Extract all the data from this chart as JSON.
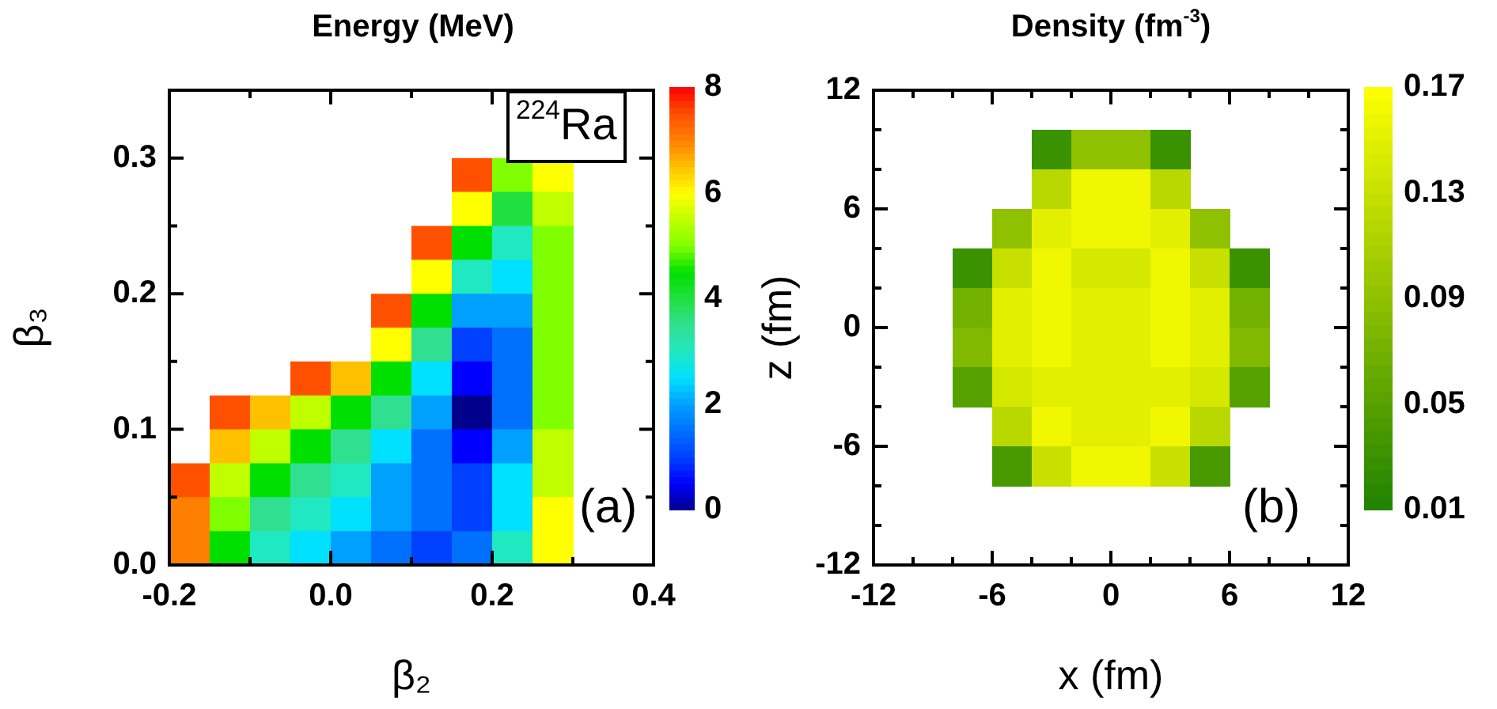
{
  "chart_data": [
    {
      "type": "scatter",
      "title": "Energy (MeV)",
      "xlabel": "β₂",
      "ylabel": "β₃",
      "marker": "square",
      "xlim": [
        -0.2,
        0.4
      ],
      "xticks": [
        -0.2,
        {
          "value": -0.1,
          "label": null
        },
        {
          "value": 0,
          "label": "0.0"
        },
        {
          "value": 0.1,
          "label": null
        },
        0.2,
        {
          "value": 0.3,
          "label": null
        },
        0.4
      ],
      "ylim": [
        0,
        0.35
      ],
      "yticks": [
        {
          "value": 0,
          "label": "0.0"
        },
        {
          "value": 0.05,
          "label": null
        },
        0.1,
        {
          "value": 0.15,
          "label": null
        },
        0.2,
        {
          "value": 0.25,
          "label": null
        },
        0.3
      ],
      "clim": [
        0,
        8
      ],
      "cticks": [
        0,
        2,
        4,
        6,
        8
      ],
      "x": [
        0.175,
        0.225,
        0.275,
        0.175,
        0.225,
        0.275,
        0.125,
        0.175,
        0.225,
        0.275,
        0.125,
        0.175,
        0.225,
        0.275,
        0.075,
        0.125,
        0.175,
        0.225,
        0.275,
        0.075,
        0.125,
        0.175,
        0.225,
        0.275,
        -0.025,
        0.025,
        0.075,
        0.125,
        0.175,
        0.225,
        0.275,
        -0.125,
        -0.075,
        -0.025,
        0.025,
        0.075,
        0.125,
        0.175,
        0.225,
        0.275,
        -0.125,
        -0.075,
        -0.025,
        0.025,
        0.075,
        0.125,
        0.175,
        0.225,
        0.275,
        -0.175,
        -0.125,
        -0.075,
        -0.025,
        0.025,
        0.075,
        0.125,
        0.175,
        0.225,
        0.275,
        -0.175,
        -0.125,
        -0.075,
        -0.025,
        0.025,
        0.075,
        0.125,
        0.175,
        0.225,
        0.275,
        -0.175,
        -0.125,
        -0.075,
        -0.025,
        0.025,
        0.075,
        0.125,
        0.175,
        0.225,
        0.275
      ],
      "values": [
        0.2875,
        0.2875,
        0.2875,
        0.2625,
        0.2625,
        0.2625,
        0.2375,
        0.2375,
        0.2375,
        0.2375,
        0.2125,
        0.2125,
        0.2125,
        0.2125,
        0.1875,
        0.1875,
        0.1875,
        0.1875,
        0.1875,
        0.1625,
        0.1625,
        0.1625,
        0.1625,
        0.1625,
        0.1375,
        0.1375,
        0.1375,
        0.1375,
        0.1375,
        0.1375,
        0.1375,
        0.1125,
        0.1125,
        0.1125,
        0.1125,
        0.1125,
        0.1125,
        0.1125,
        0.1125,
        0.1125,
        0.0875,
        0.0875,
        0.0875,
        0.0875,
        0.0875,
        0.0875,
        0.0875,
        0.0875,
        0.0875,
        0.0625,
        0.0625,
        0.0625,
        0.0625,
        0.0625,
        0.0625,
        0.0625,
        0.0625,
        0.0625,
        0.0625,
        0.0375,
        0.0375,
        0.0375,
        0.0375,
        0.0375,
        0.0375,
        0.0375,
        0.0375,
        0.0375,
        0.0375,
        0.0125,
        0.0125,
        0.0125,
        0.0125,
        0.0125,
        0.0125,
        0.0125,
        0.0125,
        0.0125,
        0.0125
      ],
      "cvalues": [
        7.5,
        5,
        6,
        6,
        4,
        5.5,
        7.5,
        4.5,
        3,
        5,
        6,
        3,
        2.5,
        5,
        7.5,
        4.5,
        2,
        2,
        5,
        6,
        3.5,
        1,
        1.5,
        5,
        7.5,
        6.5,
        4.5,
        2.5,
        0.5,
        1.5,
        5,
        7.5,
        6.5,
        5.5,
        4.5,
        3.5,
        2,
        0,
        1.5,
        5,
        6.5,
        5.5,
        4.5,
        3.5,
        2.5,
        1.5,
        0.5,
        2,
        5.5,
        7.5,
        5.5,
        4.5,
        3.5,
        3,
        2,
        1.5,
        1,
        2.5,
        5.5,
        7,
        5,
        3.5,
        3,
        2.5,
        2,
        1.5,
        1,
        2.5,
        6,
        7,
        4.5,
        3,
        2.5,
        2,
        1.5,
        1,
        1.5,
        3,
        6
      ],
      "annotations": [
        "$^{224}$Ra",
        "(a)"
      ]
    },
    {
      "type": "scatter",
      "title": "Density (fm$^{-3}$)",
      "xlabel": "x (fm)",
      "ylabel": "z (fm)",
      "marker": "square",
      "xlim": [
        -12,
        12
      ],
      "xticks": [
        -12,
        {
          "value": -10,
          "label": null
        },
        {
          "value": -8,
          "label": null
        },
        -6,
        {
          "value": -4,
          "label": null
        },
        {
          "value": -2,
          "label": null
        },
        0,
        {
          "value": 2,
          "label": null
        },
        {
          "value": 4,
          "label": null
        },
        6,
        {
          "value": 8,
          "label": null
        },
        {
          "value": 10,
          "label": null
        },
        12
      ],
      "ylim": [
        -12,
        12
      ],
      "yticks": [
        -12,
        {
          "value": -10,
          "label": null
        },
        {
          "value": -8,
          "label": null
        },
        -6,
        {
          "value": -4,
          "label": null
        },
        {
          "value": -2,
          "label": null
        },
        0,
        {
          "value": 2,
          "label": null
        },
        {
          "value": 4,
          "label": null
        },
        6,
        {
          "value": 8,
          "label": null
        },
        {
          "value": 10,
          "label": null
        },
        12
      ],
      "clim": [
        0.01,
        0.17
      ],
      "cticks": [
        0.01,
        0.05,
        0.09,
        0.13,
        0.17
      ],
      "x": [
        -3,
        -1,
        1,
        3,
        -3,
        -1,
        1,
        3,
        -5,
        -3,
        -1,
        1,
        3,
        5,
        -7,
        -5,
        -3,
        -1,
        1,
        3,
        5,
        7,
        -7,
        -5,
        -3,
        -1,
        1,
        3,
        5,
        7,
        -7,
        -5,
        -3,
        -1,
        1,
        3,
        5,
        7,
        -7,
        -5,
        -3,
        -1,
        1,
        3,
        5,
        7,
        -5,
        -3,
        -1,
        1,
        3,
        5,
        -5,
        -3,
        -1,
        1,
        3,
        5
      ],
      "values": [
        9,
        9,
        9,
        9,
        7,
        7,
        7,
        7,
        5,
        5,
        5,
        5,
        5,
        5,
        3,
        3,
        3,
        3,
        3,
        3,
        3,
        3,
        1,
        1,
        1,
        1,
        1,
        1,
        1,
        1,
        -1,
        -1,
        -1,
        -1,
        -1,
        -1,
        -1,
        -1,
        -3,
        -3,
        -3,
        -3,
        -3,
        -3,
        -3,
        -3,
        -5,
        -5,
        -5,
        -5,
        -5,
        -5,
        -7,
        -7,
        -7,
        -7,
        -7,
        -7
      ],
      "cvalues": [
        0.03,
        0.09,
        0.09,
        0.03,
        0.12,
        0.16,
        0.16,
        0.12,
        0.09,
        0.15,
        0.16,
        0.16,
        0.15,
        0.09,
        0.03,
        0.13,
        0.16,
        0.14,
        0.14,
        0.16,
        0.13,
        0.03,
        0.07,
        0.15,
        0.16,
        0.15,
        0.15,
        0.16,
        0.15,
        0.07,
        0.08,
        0.15,
        0.16,
        0.15,
        0.15,
        0.16,
        0.15,
        0.08,
        0.05,
        0.14,
        0.15,
        0.15,
        0.15,
        0.15,
        0.14,
        0.05,
        0.12,
        0.16,
        0.15,
        0.15,
        0.16,
        0.12,
        0.04,
        0.13,
        0.16,
        0.16,
        0.13,
        0.04
      ],
      "annotations": [
        "(b)"
      ]
    }
  ]
}
